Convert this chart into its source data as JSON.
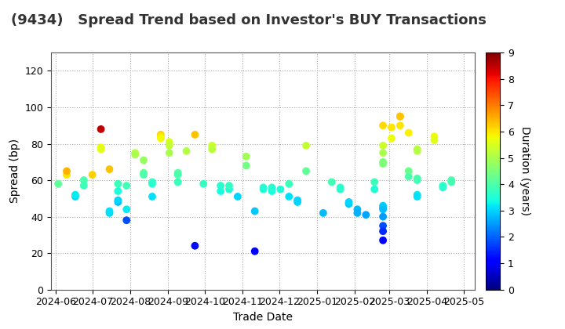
{
  "title": "(9434)   Spread Trend based on Investor's BUY Transactions",
  "xlabel": "Trade Date",
  "ylabel": "Spread (bp)",
  "colorbar_label": "Duration (years)",
  "cmap": "jet",
  "vmin": 0,
  "vmax": 9,
  "ylim": [
    0,
    130
  ],
  "yticks": [
    0,
    20,
    40,
    60,
    80,
    100,
    120
  ],
  "background_color": "#ffffff",
  "title_fontsize": 13,
  "title_fontweight": "bold",
  "axis_fontsize": 10,
  "tick_fontsize": 9,
  "dot_size": 50,
  "points": [
    {
      "date": "2024-06-03",
      "spread": 58,
      "duration": 4.2
    },
    {
      "date": "2024-06-10",
      "spread": 63,
      "duration": 6.0
    },
    {
      "date": "2024-06-10",
      "spread": 65,
      "duration": 6.5
    },
    {
      "date": "2024-06-17",
      "spread": 51,
      "duration": 3.0
    },
    {
      "date": "2024-06-17",
      "spread": 52,
      "duration": 3.2
    },
    {
      "date": "2024-06-24",
      "spread": 60,
      "duration": 4.0
    },
    {
      "date": "2024-06-24",
      "spread": 57,
      "duration": 3.8
    },
    {
      "date": "2024-07-01",
      "spread": 63,
      "duration": 6.2
    },
    {
      "date": "2024-07-08",
      "spread": 88,
      "duration": 8.5
    },
    {
      "date": "2024-07-08",
      "spread": 78,
      "duration": 5.8
    },
    {
      "date": "2024-07-08",
      "spread": 77,
      "duration": 5.6
    },
    {
      "date": "2024-07-15",
      "spread": 66,
      "duration": 6.3
    },
    {
      "date": "2024-07-15",
      "spread": 42,
      "duration": 3.0
    },
    {
      "date": "2024-07-15",
      "spread": 43,
      "duration": 3.1
    },
    {
      "date": "2024-07-22",
      "spread": 54,
      "duration": 3.5
    },
    {
      "date": "2024-07-22",
      "spread": 58,
      "duration": 3.8
    },
    {
      "date": "2024-07-22",
      "spread": 48,
      "duration": 2.8
    },
    {
      "date": "2024-07-22",
      "spread": 49,
      "duration": 3.0
    },
    {
      "date": "2024-07-29",
      "spread": 57,
      "duration": 3.9
    },
    {
      "date": "2024-07-29",
      "spread": 44,
      "duration": 3.2
    },
    {
      "date": "2024-07-29",
      "spread": 38,
      "duration": 1.8
    },
    {
      "date": "2024-08-05",
      "spread": 75,
      "duration": 5.2
    },
    {
      "date": "2024-08-05",
      "spread": 74,
      "duration": 5.0
    },
    {
      "date": "2024-08-12",
      "spread": 71,
      "duration": 4.8
    },
    {
      "date": "2024-08-12",
      "spread": 64,
      "duration": 4.2
    },
    {
      "date": "2024-08-12",
      "spread": 63,
      "duration": 4.0
    },
    {
      "date": "2024-08-19",
      "spread": 59,
      "duration": 3.8
    },
    {
      "date": "2024-08-19",
      "spread": 58,
      "duration": 3.6
    },
    {
      "date": "2024-08-19",
      "spread": 51,
      "duration": 3.1
    },
    {
      "date": "2024-08-26",
      "spread": 85,
      "duration": 6.2
    },
    {
      "date": "2024-08-26",
      "spread": 84,
      "duration": 6.0
    },
    {
      "date": "2024-08-26",
      "spread": 83,
      "duration": 5.8
    },
    {
      "date": "2024-09-02",
      "spread": 81,
      "duration": 5.5
    },
    {
      "date": "2024-09-02",
      "spread": 79,
      "duration": 5.3
    },
    {
      "date": "2024-09-02",
      "spread": 75,
      "duration": 5.0
    },
    {
      "date": "2024-09-09",
      "spread": 64,
      "duration": 4.1
    },
    {
      "date": "2024-09-09",
      "spread": 63,
      "duration": 4.0
    },
    {
      "date": "2024-09-09",
      "spread": 59,
      "duration": 3.8
    },
    {
      "date": "2024-09-16",
      "spread": 76,
      "duration": 5.1
    },
    {
      "date": "2024-09-23",
      "spread": 85,
      "duration": 6.3
    },
    {
      "date": "2024-09-23",
      "spread": 24,
      "duration": 1.2
    },
    {
      "date": "2024-09-30",
      "spread": 58,
      "duration": 3.7
    },
    {
      "date": "2024-10-07",
      "spread": 79,
      "duration": 5.4
    },
    {
      "date": "2024-10-07",
      "spread": 77,
      "duration": 5.2
    },
    {
      "date": "2024-10-14",
      "spread": 54,
      "duration": 3.4
    },
    {
      "date": "2024-10-14",
      "spread": 57,
      "duration": 3.6
    },
    {
      "date": "2024-10-21",
      "spread": 55,
      "duration": 3.5
    },
    {
      "date": "2024-10-21",
      "spread": 57,
      "duration": 3.7
    },
    {
      "date": "2024-10-28",
      "spread": 51,
      "duration": 3.0
    },
    {
      "date": "2024-11-04",
      "spread": 73,
      "duration": 4.9
    },
    {
      "date": "2024-11-04",
      "spread": 68,
      "duration": 4.4
    },
    {
      "date": "2024-11-11",
      "spread": 43,
      "duration": 2.9
    },
    {
      "date": "2024-11-11",
      "spread": 21,
      "duration": 1.0
    },
    {
      "date": "2024-11-18",
      "spread": 56,
      "duration": 3.6
    },
    {
      "date": "2024-11-18",
      "spread": 55,
      "duration": 3.5
    },
    {
      "date": "2024-11-25",
      "spread": 54,
      "duration": 3.4
    },
    {
      "date": "2024-11-25",
      "spread": 56,
      "duration": 3.6
    },
    {
      "date": "2024-12-02",
      "spread": 55,
      "duration": 3.5
    },
    {
      "date": "2024-12-09",
      "spread": 58,
      "duration": 3.8
    },
    {
      "date": "2024-12-09",
      "spread": 51,
      "duration": 3.1
    },
    {
      "date": "2024-12-16",
      "spread": 48,
      "duration": 3.0
    },
    {
      "date": "2024-12-16",
      "spread": 49,
      "duration": 3.0
    },
    {
      "date": "2024-12-23",
      "spread": 65,
      "duration": 4.2
    },
    {
      "date": "2024-12-23",
      "spread": 79,
      "duration": 5.3
    },
    {
      "date": "2025-01-06",
      "spread": 42,
      "duration": 2.8
    },
    {
      "date": "2025-01-13",
      "spread": 59,
      "duration": 3.9
    },
    {
      "date": "2025-01-20",
      "spread": 55,
      "duration": 3.5
    },
    {
      "date": "2025-01-20",
      "spread": 56,
      "duration": 3.6
    },
    {
      "date": "2025-01-27",
      "spread": 47,
      "duration": 2.9
    },
    {
      "date": "2025-01-27",
      "spread": 48,
      "duration": 3.0
    },
    {
      "date": "2025-02-03",
      "spread": 44,
      "duration": 2.8
    },
    {
      "date": "2025-02-03",
      "spread": 42,
      "duration": 2.7
    },
    {
      "date": "2025-02-10",
      "spread": 41,
      "duration": 2.6
    },
    {
      "date": "2025-02-17",
      "spread": 59,
      "duration": 3.8
    },
    {
      "date": "2025-02-17",
      "spread": 55,
      "duration": 3.5
    },
    {
      "date": "2025-02-24",
      "spread": 90,
      "duration": 6.1
    },
    {
      "date": "2025-02-24",
      "spread": 79,
      "duration": 5.4
    },
    {
      "date": "2025-02-24",
      "spread": 75,
      "duration": 5.0
    },
    {
      "date": "2025-02-24",
      "spread": 70,
      "duration": 4.6
    },
    {
      "date": "2025-02-24",
      "spread": 69,
      "duration": 4.5
    },
    {
      "date": "2025-02-24",
      "spread": 46,
      "duration": 3.0
    },
    {
      "date": "2025-02-24",
      "spread": 45,
      "duration": 2.9
    },
    {
      "date": "2025-02-24",
      "spread": 44,
      "duration": 2.8
    },
    {
      "date": "2025-02-24",
      "spread": 40,
      "duration": 2.5
    },
    {
      "date": "2025-02-24",
      "spread": 35,
      "duration": 1.8
    },
    {
      "date": "2025-02-24",
      "spread": 32,
      "duration": 1.5
    },
    {
      "date": "2025-02-24",
      "spread": 27,
      "duration": 1.1
    },
    {
      "date": "2025-03-03",
      "spread": 89,
      "duration": 6.0
    },
    {
      "date": "2025-03-03",
      "spread": 83,
      "duration": 5.7
    },
    {
      "date": "2025-03-10",
      "spread": 95,
      "duration": 6.4
    },
    {
      "date": "2025-03-10",
      "spread": 95,
      "duration": 6.3
    },
    {
      "date": "2025-03-10",
      "spread": 90,
      "duration": 6.0
    },
    {
      "date": "2025-03-17",
      "spread": 86,
      "duration": 5.9
    },
    {
      "date": "2025-03-17",
      "spread": 65,
      "duration": 4.3
    },
    {
      "date": "2025-03-17",
      "spread": 62,
      "duration": 4.0
    },
    {
      "date": "2025-03-24",
      "spread": 77,
      "duration": 5.2
    },
    {
      "date": "2025-03-24",
      "spread": 76,
      "duration": 5.1
    },
    {
      "date": "2025-03-24",
      "spread": 61,
      "duration": 4.0
    },
    {
      "date": "2025-03-24",
      "spread": 60,
      "duration": 3.9
    },
    {
      "date": "2025-03-24",
      "spread": 52,
      "duration": 3.2
    },
    {
      "date": "2025-03-24",
      "spread": 51,
      "duration": 3.1
    },
    {
      "date": "2025-04-07",
      "spread": 84,
      "duration": 5.8
    },
    {
      "date": "2025-04-07",
      "spread": 82,
      "duration": 5.6
    },
    {
      "date": "2025-04-14",
      "spread": 57,
      "duration": 3.7
    },
    {
      "date": "2025-04-14",
      "spread": 56,
      "duration": 3.6
    },
    {
      "date": "2025-04-21",
      "spread": 60,
      "duration": 4.0
    },
    {
      "date": "2025-04-21",
      "spread": 59,
      "duration": 3.9
    }
  ]
}
